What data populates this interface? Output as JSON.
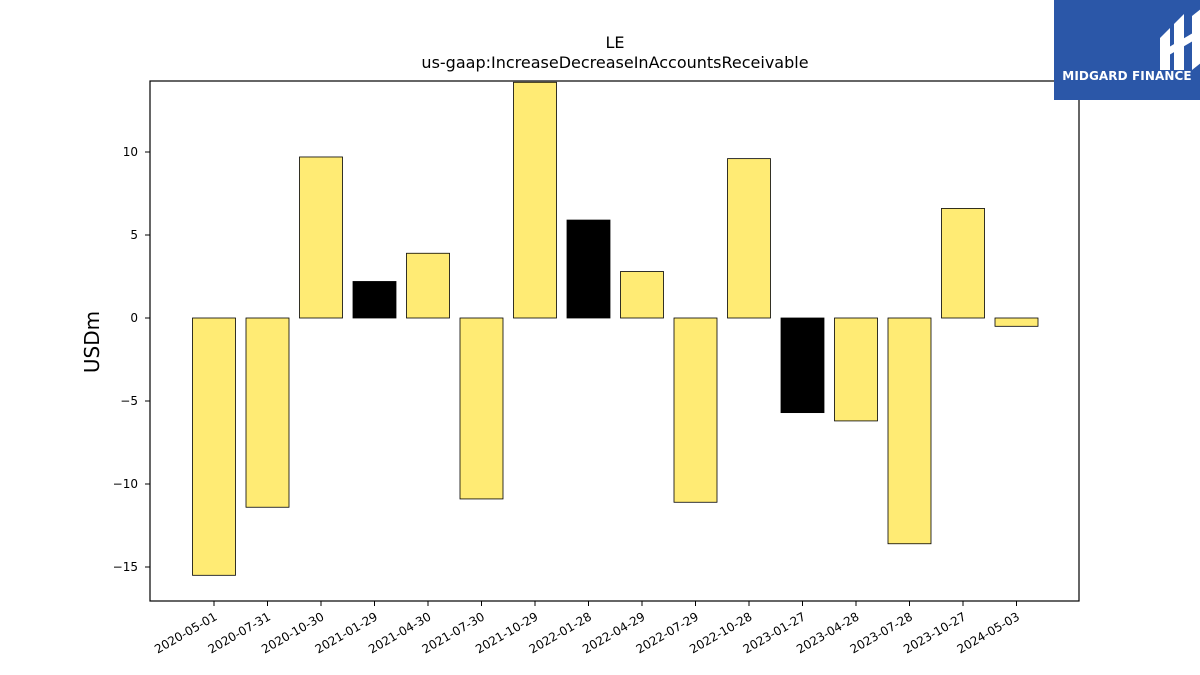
{
  "chart_data": {
    "type": "bar",
    "title": "LE",
    "subtitle": "us-gaap:IncreaseDecreaseInAccountsReceivable",
    "ylabel": "USDm",
    "xlabel": "",
    "ylim": [
      -16.5,
      14.2
    ],
    "yticks": [
      -15,
      -10,
      -5,
      0,
      5,
      10
    ],
    "grid": false,
    "categories": [
      "2020-05-01",
      "2020-07-31",
      "2020-10-30",
      "2021-01-29",
      "2021-04-30",
      "2021-07-30",
      "2021-10-29",
      "2022-01-28",
      "2022-04-29",
      "2022-07-29",
      "2022-10-28",
      "2023-01-27",
      "2023-04-28",
      "2023-07-28",
      "2023-10-27",
      "2024-05-03"
    ],
    "values": [
      -15.5,
      -11.4,
      9.7,
      2.2,
      3.9,
      -10.9,
      14.2,
      5.9,
      2.8,
      -11.1,
      9.6,
      -5.7,
      -6.2,
      -13.6,
      6.6,
      -0.5
    ],
    "bar_colors": [
      "#ffeb74",
      "#ffeb74",
      "#ffeb74",
      "#000000",
      "#ffeb74",
      "#ffeb74",
      "#ffeb74",
      "#000000",
      "#ffeb74",
      "#ffeb74",
      "#ffeb74",
      "#000000",
      "#ffeb74",
      "#ffeb74",
      "#ffeb74",
      "#ffeb74"
    ]
  },
  "logo": {
    "text": "MIDGARD FINANCE",
    "background": "#2b57a8"
  }
}
